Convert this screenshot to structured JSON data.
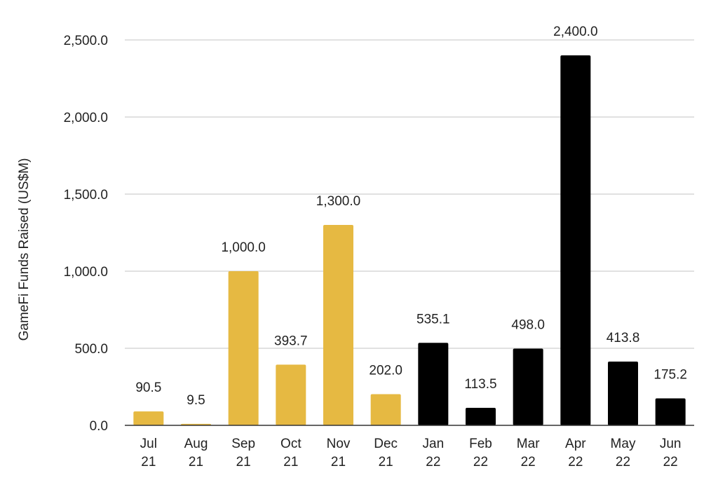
{
  "colors": {
    "bar_2021": "#E6B942",
    "bar_2022": "#000000",
    "grid": "#CFCFCF",
    "axis": "#333333",
    "text": "#222222"
  },
  "chart_data": {
    "type": "bar",
    "title": "",
    "xlabel": "",
    "ylabel": "GameFi Funds Raised (US$M)",
    "ylim": [
      0,
      2500
    ],
    "grid": true,
    "yticks": [
      "0.0",
      "500.0",
      "1,000.0",
      "1,500.0",
      "2,000.0",
      "2,500.0"
    ],
    "ytick_values": [
      0,
      500,
      1000,
      1500,
      2000,
      2500
    ],
    "categories": [
      [
        "Jul",
        "21"
      ],
      [
        "Aug",
        "21"
      ],
      [
        "Sep",
        "21"
      ],
      [
        "Oct",
        "21"
      ],
      [
        "Nov",
        "21"
      ],
      [
        "Dec",
        "21"
      ],
      [
        "Jan",
        "22"
      ],
      [
        "Feb",
        "22"
      ],
      [
        "Mar",
        "22"
      ],
      [
        "Apr",
        "22"
      ],
      [
        "May",
        "22"
      ],
      [
        "Jun",
        "22"
      ]
    ],
    "values": [
      90.5,
      9.5,
      1000.0,
      393.7,
      1300.0,
      202.0,
      535.1,
      113.5,
      498.0,
      2400.0,
      413.8,
      175.2
    ],
    "value_labels": [
      "90.5",
      "9.5",
      "1,000.0",
      "393.7",
      "1,300.0",
      "202.0",
      "535.1",
      "113.5",
      "498.0",
      "2,400.0",
      "413.8",
      "175.2"
    ],
    "bar_colors": [
      "#E6B942",
      "#E6B942",
      "#E6B942",
      "#E6B942",
      "#E6B942",
      "#E6B942",
      "#000000",
      "#000000",
      "#000000",
      "#000000",
      "#000000",
      "#000000"
    ]
  }
}
